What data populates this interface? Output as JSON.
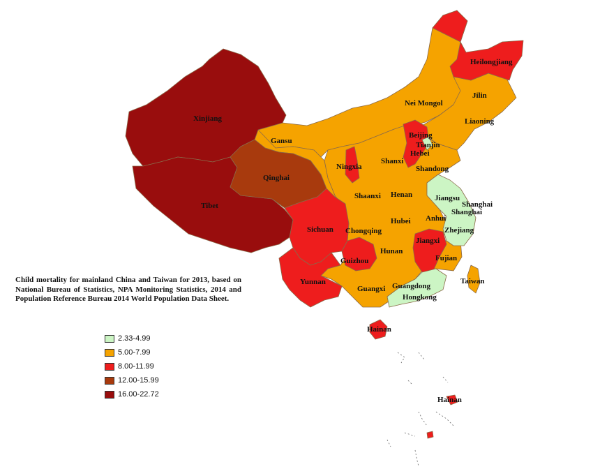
{
  "map": {
    "caption": "Child mortality for mainland China and Taiwan for 2013, based on National Bureau of Statistics, NPA Monitoring Statistics, 2014 and Population Reference Bureau 2014 World Population Data Sheet.",
    "legend": [
      {
        "label": "2.33-4.99",
        "color": "#ccf5c4"
      },
      {
        "label": "5.00-7.99",
        "color": "#f5a300"
      },
      {
        "label": "8.00-11.99",
        "color": "#ee1d1d"
      },
      {
        "label": "12.00-15.99",
        "color": "#a83a0d"
      },
      {
        "label": "16.00-22.72",
        "color": "#990d0d"
      }
    ],
    "provinces": [
      {
        "name": "Xinjiang",
        "class": "16.00-22.72"
      },
      {
        "name": "Tibet",
        "class": "16.00-22.72"
      },
      {
        "name": "Qinghai",
        "class": "12.00-15.99"
      },
      {
        "name": "Gansu",
        "class": "5.00-7.99"
      },
      {
        "name": "Nei Mongol",
        "class": "5.00-7.99"
      },
      {
        "name": "Heilongjiang",
        "class": "8.00-11.99"
      },
      {
        "name": "Jilin",
        "class": "5.00-7.99"
      },
      {
        "name": "Liaoning",
        "class": "5.00-7.99"
      },
      {
        "name": "Beijing",
        "class": "8.00-11.99"
      },
      {
        "name": "Tianjin",
        "class": "2.33-4.99"
      },
      {
        "name": "Hebei",
        "class": "8.00-11.99"
      },
      {
        "name": "Ningxia",
        "class": "8.00-11.99"
      },
      {
        "name": "Shanxi",
        "class": "5.00-7.99"
      },
      {
        "name": "Shandong",
        "class": "5.00-7.99"
      },
      {
        "name": "Shaanxi",
        "class": "5.00-7.99"
      },
      {
        "name": "Henan",
        "class": "5.00-7.99"
      },
      {
        "name": "Jiangsu",
        "class": "2.33-4.99"
      },
      {
        "name": "Shanghai",
        "class": "2.33-4.99"
      },
      {
        "name": "Anhui",
        "class": "5.00-7.99"
      },
      {
        "name": "Hubei",
        "class": "5.00-7.99"
      },
      {
        "name": "Zhejiang",
        "class": "2.33-4.99"
      },
      {
        "name": "Sichuan",
        "class": "8.00-11.99"
      },
      {
        "name": "Chongqing",
        "class": "5.00-7.99"
      },
      {
        "name": "Jiangxi",
        "class": "8.00-11.99"
      },
      {
        "name": "Hunan",
        "class": "5.00-7.99"
      },
      {
        "name": "Guizhou",
        "class": "8.00-11.99"
      },
      {
        "name": "Fujian",
        "class": "5.00-7.99"
      },
      {
        "name": "Taiwan",
        "class": "5.00-7.99"
      },
      {
        "name": "Yunnan",
        "class": "8.00-11.99"
      },
      {
        "name": "Guangxi",
        "class": "5.00-7.99"
      },
      {
        "name": "Guangdong",
        "class": "2.33-4.99"
      },
      {
        "name": "Hongkong",
        "class": "2.33-4.99"
      },
      {
        "name": "Hainan",
        "class": "8.00-11.99"
      }
    ],
    "inset_label": "Hainan"
  }
}
